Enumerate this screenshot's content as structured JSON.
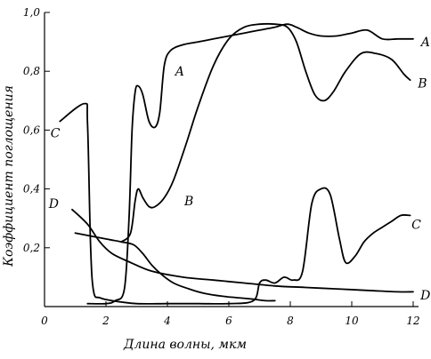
{
  "chart_data": {
    "type": "line",
    "title": "",
    "xlabel": "Длина волны, мкм",
    "ylabel": "Коэффициент поглощения",
    "xlim": [
      0,
      12.5
    ],
    "ylim": [
      0,
      1.0
    ],
    "xticks": [
      0,
      2,
      4,
      6,
      8,
      10,
      12
    ],
    "xtick_labels": [
      "0",
      "2",
      "4",
      "6",
      "8",
      "10",
      "12"
    ],
    "yticks": [
      0.2,
      0.4,
      0.6,
      0.8,
      1.0
    ],
    "ytick_labels": [
      "0,2",
      "0,4",
      "0,6",
      "0,8",
      "1,0"
    ],
    "grid": false,
    "line_color": "#000000",
    "series": [
      {
        "name": "A",
        "points": [
          [
            1.4,
            0.01
          ],
          [
            2.0,
            0.01
          ],
          [
            2.3,
            0.02
          ],
          [
            2.6,
            0.06
          ],
          [
            2.75,
            0.3
          ],
          [
            2.85,
            0.6
          ],
          [
            2.95,
            0.73
          ],
          [
            3.05,
            0.75
          ],
          [
            3.2,
            0.72
          ],
          [
            3.4,
            0.63
          ],
          [
            3.6,
            0.61
          ],
          [
            3.75,
            0.66
          ],
          [
            3.9,
            0.82
          ],
          [
            4.1,
            0.87
          ],
          [
            4.5,
            0.89
          ],
          [
            5.0,
            0.9
          ],
          [
            5.5,
            0.91
          ],
          [
            6.0,
            0.92
          ],
          [
            6.5,
            0.93
          ],
          [
            7.0,
            0.94
          ],
          [
            7.5,
            0.95
          ],
          [
            7.9,
            0.96
          ],
          [
            8.2,
            0.95
          ],
          [
            8.6,
            0.93
          ],
          [
            9.0,
            0.92
          ],
          [
            9.5,
            0.92
          ],
          [
            10.0,
            0.93
          ],
          [
            10.5,
            0.94
          ],
          [
            11.0,
            0.91
          ],
          [
            11.5,
            0.91
          ],
          [
            12.0,
            0.91
          ]
        ],
        "label_positions": [
          {
            "x": 4.4,
            "y": 0.8
          },
          {
            "x": 12.4,
            "y": 0.9
          }
        ]
      },
      {
        "name": "B",
        "points": [
          [
            2.5,
            0.22
          ],
          [
            2.8,
            0.25
          ],
          [
            2.95,
            0.36
          ],
          [
            3.05,
            0.4
          ],
          [
            3.2,
            0.37
          ],
          [
            3.4,
            0.34
          ],
          [
            3.6,
            0.34
          ],
          [
            3.9,
            0.37
          ],
          [
            4.2,
            0.43
          ],
          [
            4.6,
            0.55
          ],
          [
            5.0,
            0.68
          ],
          [
            5.5,
            0.82
          ],
          [
            6.0,
            0.91
          ],
          [
            6.5,
            0.95
          ],
          [
            7.0,
            0.96
          ],
          [
            7.5,
            0.96
          ],
          [
            7.9,
            0.95
          ],
          [
            8.2,
            0.9
          ],
          [
            8.5,
            0.8
          ],
          [
            8.8,
            0.72
          ],
          [
            9.1,
            0.7
          ],
          [
            9.4,
            0.73
          ],
          [
            9.8,
            0.8
          ],
          [
            10.3,
            0.86
          ],
          [
            10.8,
            0.86
          ],
          [
            11.3,
            0.84
          ],
          [
            11.7,
            0.79
          ],
          [
            11.9,
            0.77
          ]
        ],
        "label_positions": [
          {
            "x": 12.3,
            "y": 0.76
          },
          {
            "x": 4.7,
            "y": 0.36
          }
        ]
      },
      {
        "name": "C",
        "points": [
          [
            0.5,
            0.63
          ],
          [
            1.3,
            0.69
          ],
          [
            1.4,
            0.62
          ],
          [
            1.5,
            0.2
          ],
          [
            1.6,
            0.05
          ],
          [
            1.8,
            0.03
          ],
          [
            2.2,
            0.02
          ],
          [
            3.0,
            0.01
          ],
          [
            4.0,
            0.01
          ],
          [
            5.0,
            0.01
          ],
          [
            6.0,
            0.01
          ],
          [
            6.8,
            0.02
          ],
          [
            7.0,
            0.08
          ],
          [
            7.2,
            0.09
          ],
          [
            7.5,
            0.08
          ],
          [
            7.8,
            0.1
          ],
          [
            8.1,
            0.09
          ],
          [
            8.4,
            0.12
          ],
          [
            8.7,
            0.35
          ],
          [
            9.0,
            0.4
          ],
          [
            9.3,
            0.38
          ],
          [
            9.6,
            0.23
          ],
          [
            9.8,
            0.15
          ],
          [
            10.1,
            0.17
          ],
          [
            10.4,
            0.22
          ],
          [
            10.7,
            0.25
          ],
          [
            11.0,
            0.27
          ],
          [
            11.3,
            0.29
          ],
          [
            11.6,
            0.31
          ],
          [
            11.9,
            0.31
          ]
        ],
        "label_positions": [
          {
            "x": 0.35,
            "y": 0.59
          },
          {
            "x": 12.1,
            "y": 0.28
          }
        ]
      },
      {
        "name": "D",
        "points": [
          [
            0.9,
            0.33
          ],
          [
            1.4,
            0.28
          ],
          [
            1.8,
            0.22
          ],
          [
            2.2,
            0.18
          ],
          [
            2.8,
            0.15
          ],
          [
            3.5,
            0.12
          ],
          [
            4.5,
            0.1
          ],
          [
            5.5,
            0.09
          ],
          [
            6.5,
            0.08
          ],
          [
            7.5,
            0.07
          ],
          [
            8.5,
            0.065
          ],
          [
            9.5,
            0.06
          ],
          [
            10.5,
            0.055
          ],
          [
            11.5,
            0.05
          ],
          [
            12.0,
            0.05
          ]
        ],
        "label_positions": [
          {
            "x": 0.3,
            "y": 0.35
          },
          {
            "x": 12.4,
            "y": 0.04
          }
        ]
      },
      {
        "name": "",
        "points": [
          [
            1.0,
            0.25
          ],
          [
            1.5,
            0.24
          ],
          [
            2.0,
            0.23
          ],
          [
            2.5,
            0.22
          ],
          [
            2.9,
            0.21
          ],
          [
            3.2,
            0.18
          ],
          [
            3.5,
            0.14
          ],
          [
            3.8,
            0.11
          ],
          [
            4.2,
            0.08
          ],
          [
            4.7,
            0.06
          ],
          [
            5.2,
            0.045
          ],
          [
            5.8,
            0.035
          ],
          [
            6.3,
            0.03
          ],
          [
            6.8,
            0.025
          ],
          [
            7.2,
            0.02
          ],
          [
            7.5,
            0.02
          ]
        ],
        "label_positions": []
      }
    ]
  }
}
